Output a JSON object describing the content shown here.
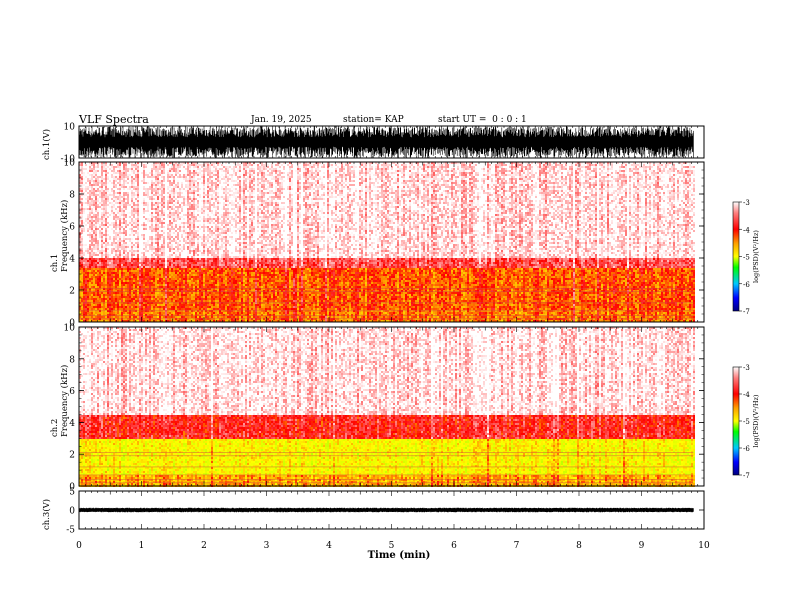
{
  "header": {
    "title": "VLF Spectra",
    "date": "Jan. 19, 2025",
    "station": "station= KAP",
    "start": "start UT =  0 : 0 : 1"
  },
  "chart_data": [
    {
      "type": "line",
      "panel": "ch1-waveform",
      "ylabel": "ch.1(V)",
      "ylim": [
        -10,
        10
      ],
      "y_ticks": [
        "10",
        "-10"
      ],
      "xlim": [
        0,
        10
      ],
      "data_extent_x": [
        0,
        9.83
      ],
      "description_values": {
        "amplitude_min": -10,
        "amplitude_max": 10
      }
    },
    {
      "type": "heatmap",
      "panel": "ch1-spectrogram",
      "ylabel": "ch.1\nFrequency (kHz)",
      "ylim": [
        0,
        10
      ],
      "y_ticks": [
        "0",
        "2",
        "4",
        "6",
        "8",
        "10"
      ],
      "xlim": [
        0,
        10
      ],
      "data_extent_x": [
        0,
        9.83
      ],
      "colorbar": {
        "label": "log(PSD)(V²/Hz)",
        "range": [
          -7,
          -3
        ],
        "ticks": [
          "-3",
          "-4",
          "-5",
          "-6",
          "-7"
        ]
      },
      "bands": [
        {
          "f_from": 0.0,
          "f_to": 0.8,
          "level": -4.2
        },
        {
          "f_from": 0.8,
          "f_to": 3.4,
          "level": -4.1
        },
        {
          "f_from": 3.4,
          "f_to": 4.0,
          "level": -3.6
        },
        {
          "f_from": 4.0,
          "f_to": 10.0,
          "level": -3.1
        }
      ]
    },
    {
      "type": "heatmap",
      "panel": "ch2-spectrogram",
      "ylabel": "ch.2\nFrequency (kHz)",
      "ylim": [
        0,
        10
      ],
      "y_ticks": [
        "0",
        "2",
        "4",
        "6",
        "8",
        "10"
      ],
      "xlim": [
        0,
        10
      ],
      "data_extent_x": [
        0,
        9.83
      ],
      "colorbar": {
        "label": "log(PSD)(V²/Hz)",
        "range": [
          -7,
          -3
        ],
        "ticks": [
          "-3",
          "-4",
          "-5",
          "-6",
          "-7"
        ]
      },
      "bands": [
        {
          "f_from": 0.0,
          "f_to": 0.8,
          "level": -4.4
        },
        {
          "f_from": 0.8,
          "f_to": 3.0,
          "level": -4.8
        },
        {
          "f_from": 3.0,
          "f_to": 4.5,
          "level": -3.8
        },
        {
          "f_from": 4.5,
          "f_to": 10.0,
          "level": -3.1
        }
      ]
    },
    {
      "type": "line",
      "panel": "ch3-waveform",
      "ylabel": "ch.3(V)",
      "ylim": [
        -5,
        5
      ],
      "y_ticks": [
        "5",
        "0",
        "-5"
      ],
      "xlim": [
        0,
        10
      ],
      "data_extent_x": [
        0,
        9.83
      ],
      "description_values": {
        "amplitude_min": -0.6,
        "amplitude_max": 0.6
      }
    }
  ],
  "xaxis": {
    "label": "Time (min)",
    "ticks": [
      "0",
      "1",
      "2",
      "3",
      "4",
      "5",
      "6",
      "7",
      "8",
      "9",
      "10"
    ]
  },
  "colors": {
    "colormap": [
      "#000080",
      "#0000ff",
      "#00c8ff",
      "#00ff00",
      "#c8ff00",
      "#ffff00",
      "#ffa000",
      "#ff0000",
      "#ff8080",
      "#ffffff"
    ]
  }
}
